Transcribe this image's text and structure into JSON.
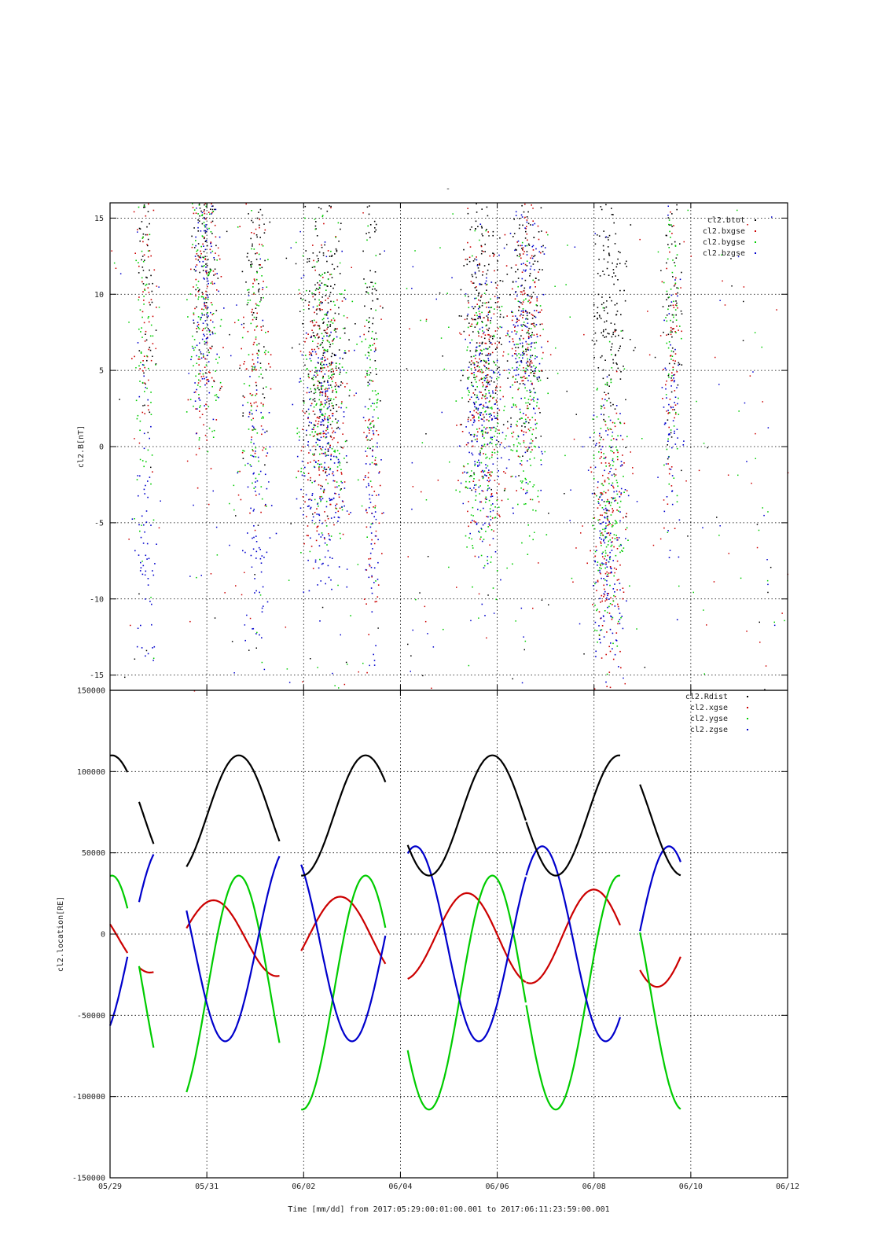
{
  "chart_data": [
    {
      "type": "scatter",
      "title": "-",
      "xlabel": "",
      "ylabel": "cl2.B[nT]",
      "ylim": [
        -16,
        16
      ],
      "yticks": [
        -15,
        -10,
        -5,
        0,
        5,
        10,
        15
      ],
      "xlim": [
        "05/29",
        "06/12"
      ],
      "grid": true,
      "legend": "top-right",
      "series": [
        {
          "name": "cl2.btot",
          "color": "#000000"
        },
        {
          "name": "cl2.bxgse",
          "color": "#cc0000"
        },
        {
          "name": "cl2.bygse",
          "color": "#00cc00"
        },
        {
          "name": "cl2.bzgse",
          "color": "#0000cc"
        }
      ]
    },
    {
      "type": "line",
      "xlabel": "Time [mm/dd]  from 2017:05:29:00:01:00.001  to  2017:06:11:23:59:00.001",
      "ylabel": "cl2.location[RE]",
      "ylim": [
        -150000,
        150000
      ],
      "yticks": [
        "-150000",
        "-100000",
        "-50000",
        "0",
        "50000",
        "100000",
        "150000"
      ],
      "xticks": [
        "05/29",
        "05/31",
        "06/02",
        "06/04",
        "06/06",
        "06/08",
        "06/10",
        "06/12"
      ],
      "grid": true,
      "legend": "top-right",
      "series": [
        {
          "name": "cl2.Rdist",
          "color": "#000000"
        },
        {
          "name": "cl2.xgse",
          "color": "#cc0000"
        },
        {
          "name": "cl2.ygse",
          "color": "#00cc00"
        },
        {
          "name": "cl2.zgse",
          "color": "#0000cc"
        }
      ]
    }
  ]
}
